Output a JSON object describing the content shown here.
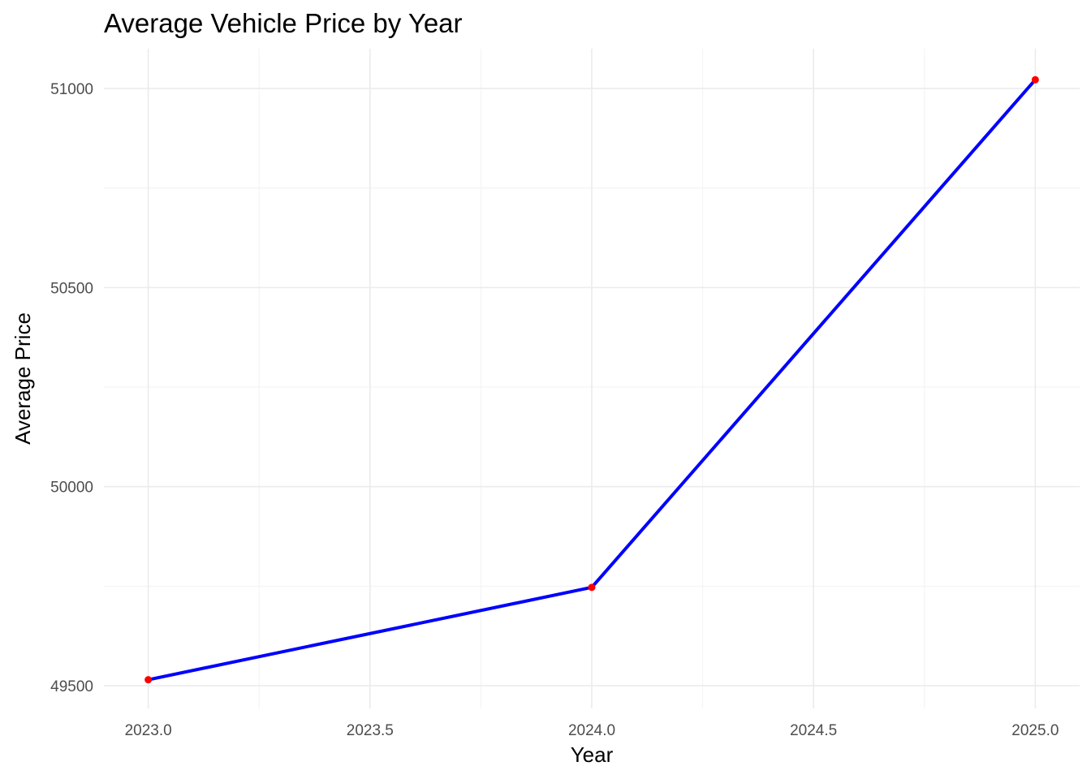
{
  "chart_data": {
    "type": "line",
    "title": "Average Vehicle Price by Year",
    "xlabel": "Year",
    "ylabel": "Average Price",
    "x": [
      2023,
      2024,
      2025
    ],
    "series": [
      {
        "values": [
          49515,
          49747,
          51022
        ]
      }
    ],
    "xlim": [
      2022.9,
      2025.1
    ],
    "ylim": [
      49443,
      51100
    ],
    "x_ticks": [
      2023.0,
      2023.5,
      2024.0,
      2024.5,
      2025.0
    ],
    "x_tick_labels": [
      "2023.0",
      "2023.5",
      "2024.0",
      "2024.5",
      "2025.0"
    ],
    "y_ticks": [
      49500,
      50000,
      50500,
      51000
    ],
    "y_tick_labels": [
      "49500",
      "50000",
      "50500",
      "51000"
    ],
    "grid": true,
    "legend": "none",
    "colors": {
      "line": "#0000ff",
      "points": "#ff0000",
      "grid": "#ebebeb"
    }
  }
}
